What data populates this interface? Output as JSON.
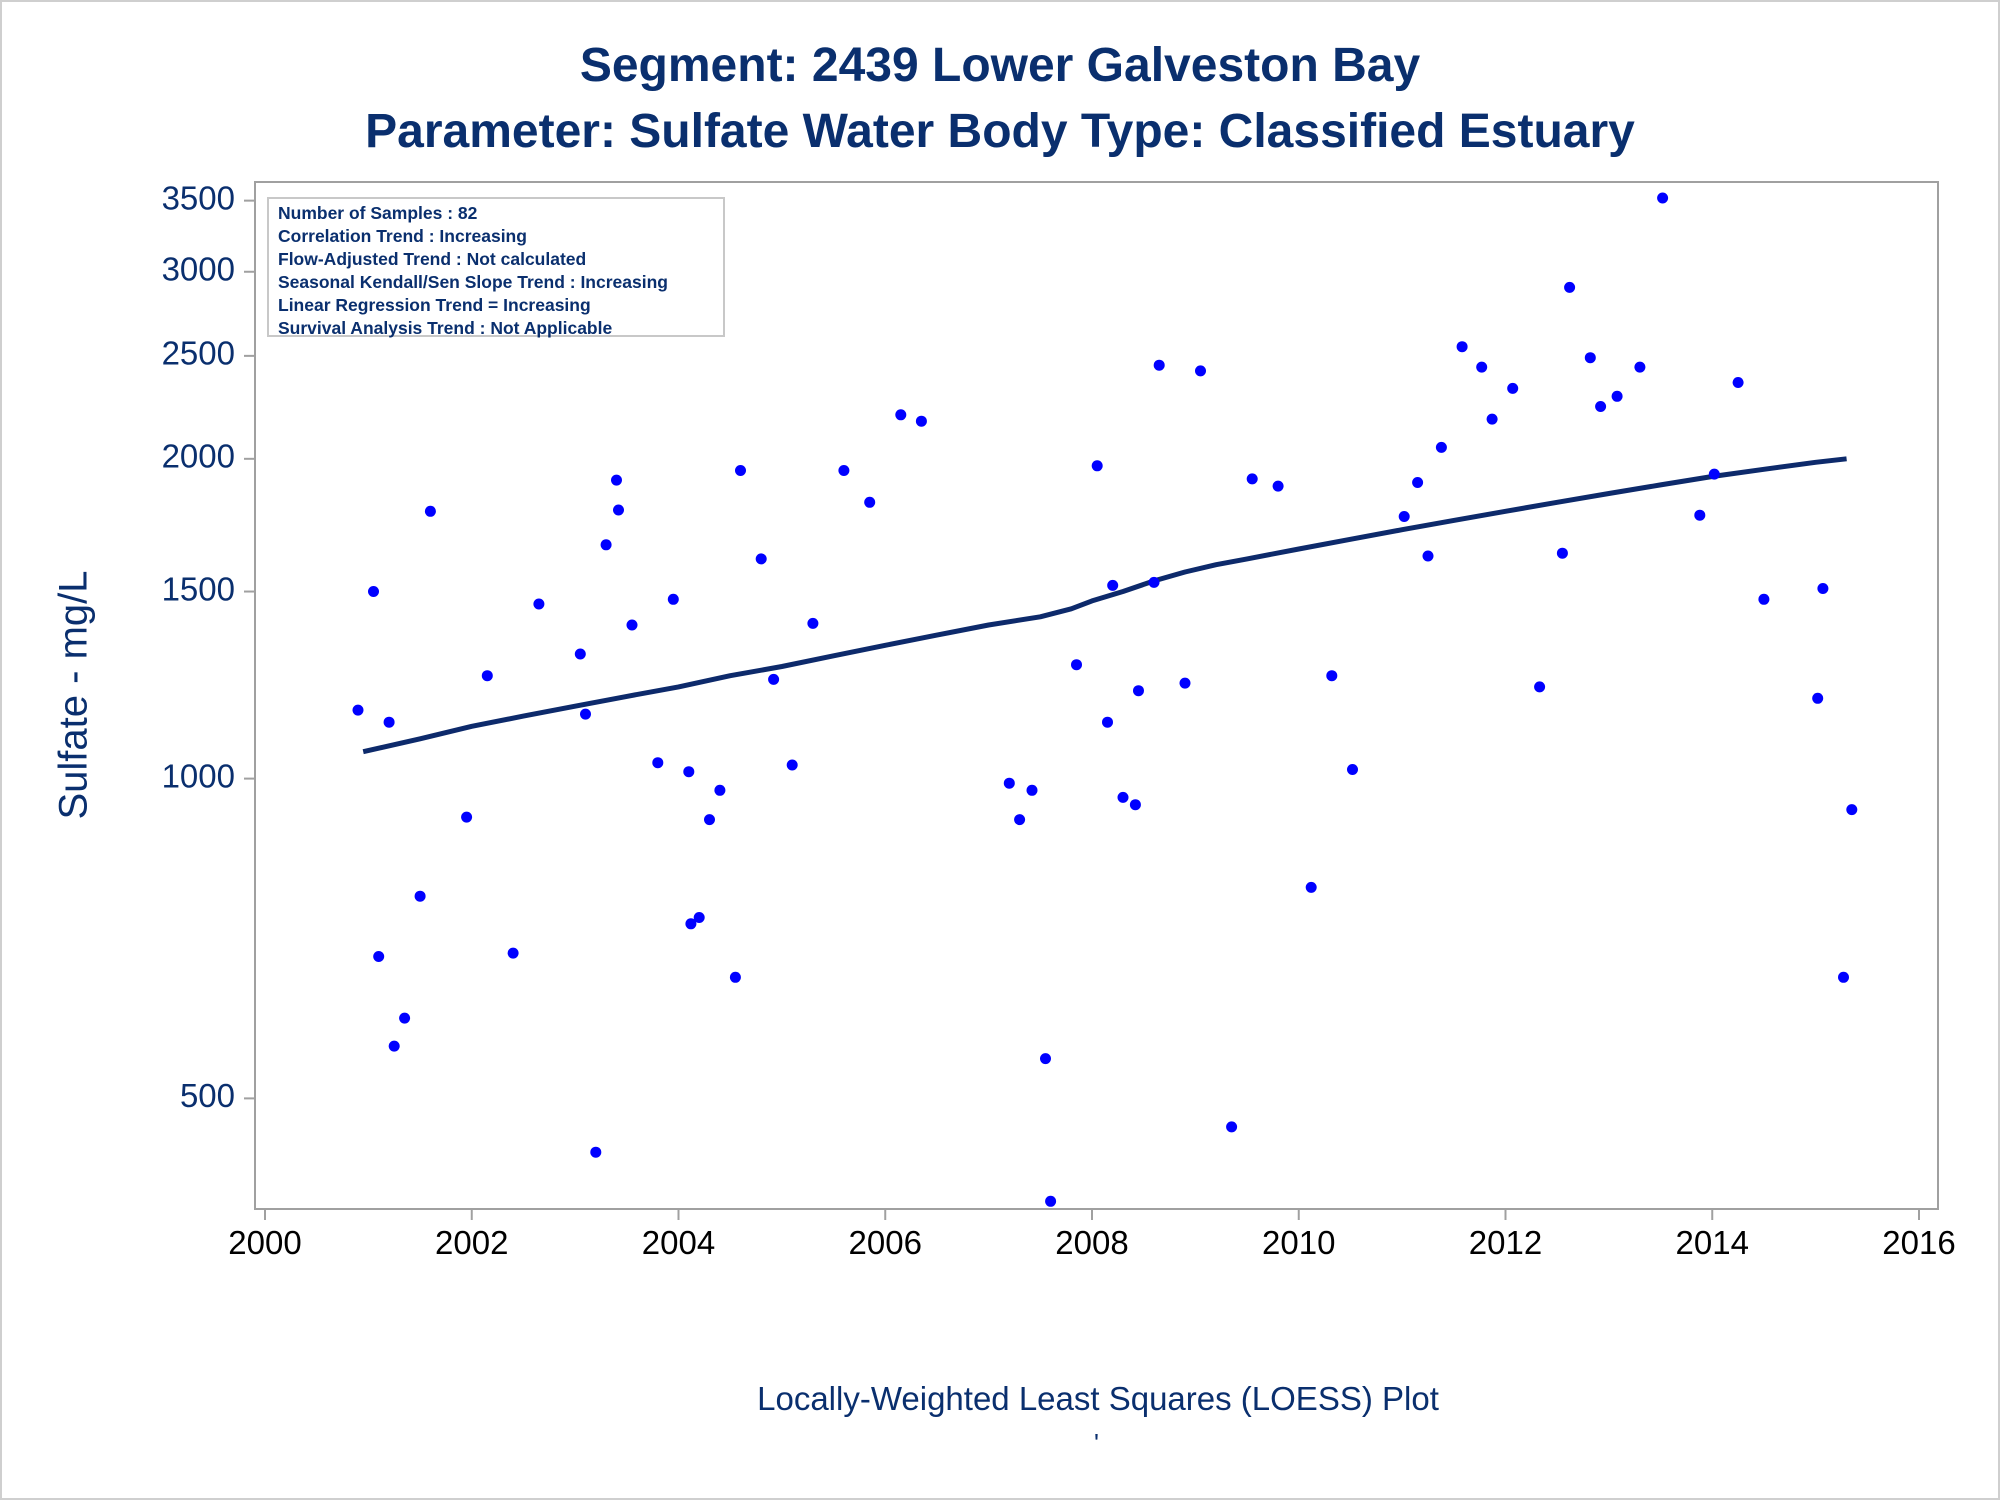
{
  "header": {
    "title": "Segment: 2439  Lower Galveston Bay",
    "subtitle": "Parameter: Sulfate   Water Body Type: Classified Estuary"
  },
  "stats_box": {
    "lines": [
      "Number of Samples : 82",
      "Correlation Trend : Increasing",
      "Flow-Adjusted Trend : Not calculated",
      "Seasonal Kendall/Sen Slope Trend : Increasing",
      "Linear Regression Trend = Increasing",
      "Survival Analysis Trend : Not Applicable"
    ]
  },
  "footnote": "Locally-Weighted Least Squares (LOESS) Plot",
  "footmark": "'",
  "colors": {
    "text": "#0a2f6e",
    "points": "#0000ff",
    "line": "#0d2a6b",
    "frame": "#a0a0a0"
  },
  "chart_data": {
    "type": "scatter",
    "ylabel": "Sulfate - mg/L",
    "xlabel": "",
    "y_scale": "log",
    "xlim": [
      2000,
      2016
    ],
    "ylim": [
      380,
      3700
    ],
    "x_ticks": [
      2000,
      2002,
      2004,
      2006,
      2008,
      2010,
      2012,
      2014,
      2016
    ],
    "y_ticks": [
      500,
      1000,
      1500,
      2000,
      2500,
      3000,
      3500
    ],
    "series": [
      {
        "kind": "points",
        "x": [
          2000.9,
          2001.05,
          2001.1,
          2001.2,
          2001.25,
          2001.35,
          2001.5,
          2001.6,
          2001.95,
          2002.15,
          2002.4,
          2002.65,
          2003.05,
          2003.1,
          2003.2,
          2003.3,
          2003.4,
          2003.42,
          2003.55,
          2003.8,
          2003.95,
          2004.1,
          2004.12,
          2004.2,
          2004.3,
          2004.4,
          2004.55,
          2004.6,
          2004.8,
          2004.92,
          2005.1,
          2005.3,
          2005.6,
          2005.85,
          2006.15,
          2006.35,
          2007.2,
          2007.3,
          2007.42,
          2007.55,
          2007.6,
          2007.85,
          2008.05,
          2008.15,
          2008.2,
          2008.3,
          2008.42,
          2008.45,
          2008.6,
          2008.65,
          2008.9,
          2009.05,
          2009.35,
          2009.55,
          2009.8,
          2010.12,
          2010.32,
          2010.52,
          2011.02,
          2011.15,
          2011.25,
          2011.38,
          2011.58,
          2011.77,
          2011.87,
          2012.07,
          2012.33,
          2012.55,
          2012.62,
          2012.82,
          2012.92,
          2013.08,
          2013.3,
          2013.52,
          2013.88,
          2014.02,
          2014.25,
          2014.5,
          2015.02,
          2015.07,
          2015.27,
          2015.35
        ],
        "y": [
          1160,
          1500,
          680,
          1130,
          560,
          595,
          775,
          1785,
          920,
          1250,
          685,
          1460,
          1310,
          1150,
          445,
          1660,
          1910,
          1790,
          1395,
          1035,
          1475,
          1015,
          730,
          740,
          915,
          975,
          650,
          1950,
          1610,
          1240,
          1030,
          1400,
          1950,
          1820,
          2200,
          2170,
          990,
          915,
          975,
          545,
          400,
          1280,
          1970,
          1130,
          1520,
          960,
          945,
          1210,
          1530,
          2450,
          1230,
          2420,
          470,
          1915,
          1885,
          790,
          1250,
          1020,
          1765,
          1900,
          1620,
          2050,
          2550,
          2440,
          2180,
          2330,
          1220,
          1630,
          2900,
          2490,
          2240,
          2290,
          2440,
          3520,
          1770,
          1935,
          2360,
          1475,
          1190,
          1510,
          650,
          935
        ]
      },
      {
        "kind": "loess",
        "x": [
          2000.95,
          2001.5,
          2002,
          2002.5,
          2003,
          2003.5,
          2004,
          2004.5,
          2005,
          2005.5,
          2006,
          2006.5,
          2007,
          2007.5,
          2007.8,
          2008,
          2008.3,
          2008.6,
          2008.9,
          2009.2,
          2009.5,
          2010,
          2010.5,
          2011,
          2011.5,
          2012,
          2012.5,
          2013,
          2013.5,
          2014,
          2014.5,
          2015,
          2015.3
        ],
        "y": [
          1060,
          1090,
          1120,
          1145,
          1170,
          1195,
          1220,
          1250,
          1275,
          1305,
          1335,
          1365,
          1395,
          1420,
          1445,
          1470,
          1500,
          1535,
          1565,
          1590,
          1610,
          1645,
          1680,
          1715,
          1750,
          1785,
          1820,
          1855,
          1890,
          1925,
          1955,
          1985,
          2000
        ]
      }
    ]
  }
}
